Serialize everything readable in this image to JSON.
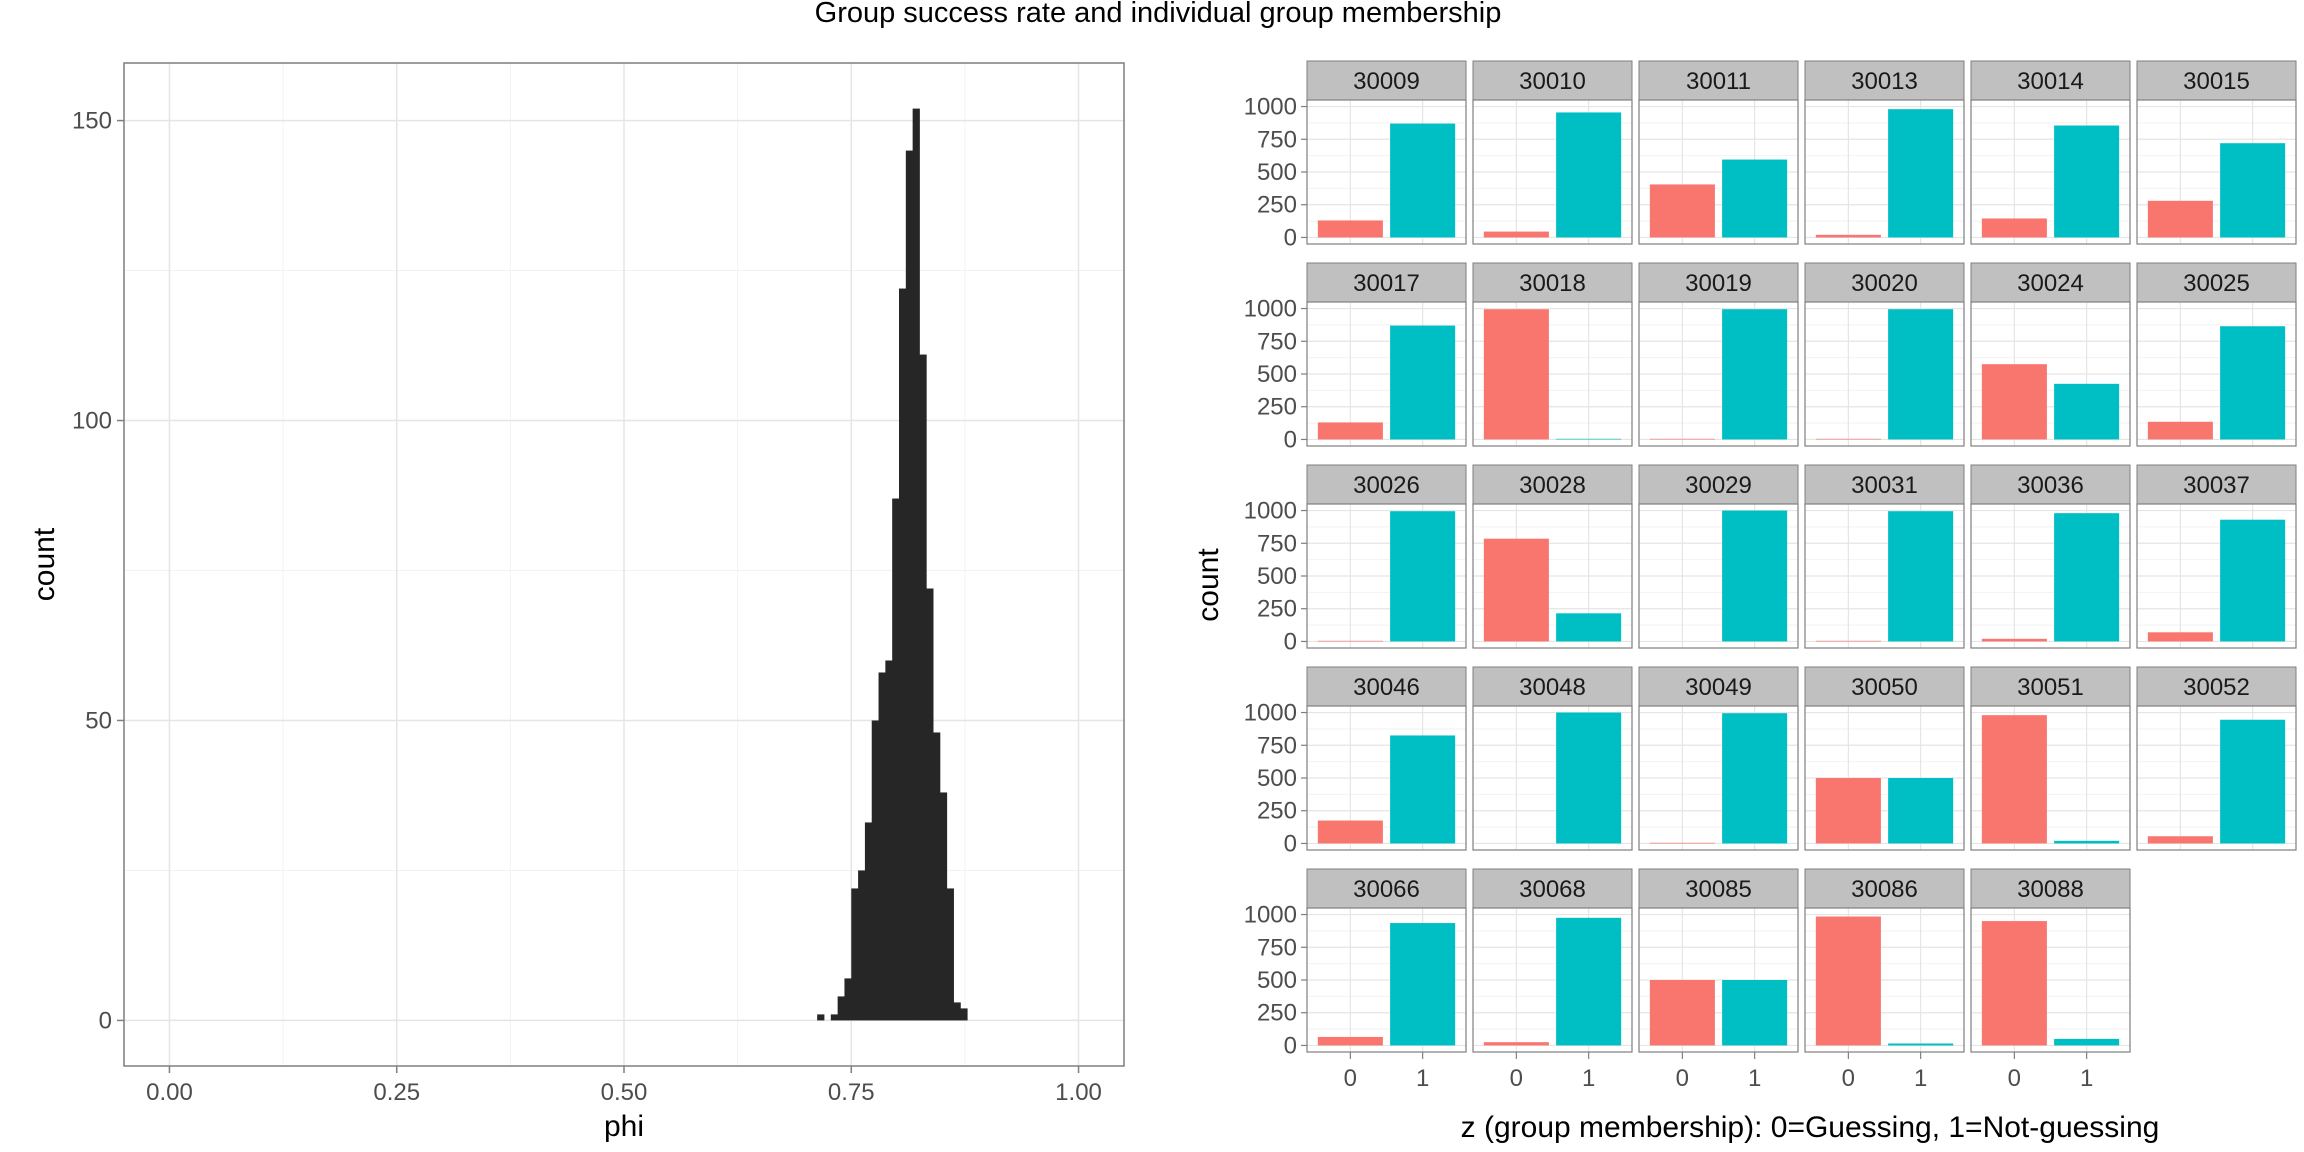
{
  "title": "Group success rate and individual group membership",
  "colors": {
    "group0": "#F8766D",
    "group1": "#00BFC4",
    "histogram": "#262626",
    "strip": "#C0C0C0"
  },
  "chart_data": [
    {
      "type": "bar",
      "subtype": "histogram",
      "xlabel": "phi",
      "ylabel": "count",
      "xlim": [
        -0.05,
        1.05
      ],
      "ylim": [
        -7.6,
        159.6
      ],
      "x_ticks": [
        "0.00",
        "0.25",
        "0.50",
        "0.75",
        "1.00"
      ],
      "y_ticks": [
        "0",
        "50",
        "100",
        "150"
      ],
      "grid": true,
      "bin_width": 0.0075,
      "bins": [
        [
          0.7125,
          1
        ],
        [
          0.7275,
          1
        ],
        [
          0.735,
          4
        ],
        [
          0.7425,
          7
        ],
        [
          0.75,
          22
        ],
        [
          0.7575,
          25
        ],
        [
          0.765,
          33
        ],
        [
          0.7725,
          50
        ],
        [
          0.78,
          58
        ],
        [
          0.7875,
          60
        ],
        [
          0.795,
          87
        ],
        [
          0.8025,
          122
        ],
        [
          0.81,
          145
        ],
        [
          0.8175,
          152
        ],
        [
          0.825,
          111
        ],
        [
          0.8325,
          72
        ],
        [
          0.84,
          48
        ],
        [
          0.8475,
          38
        ],
        [
          0.855,
          22
        ],
        [
          0.8625,
          3
        ],
        [
          0.87,
          2
        ]
      ]
    },
    {
      "type": "bar",
      "subtype": "faceted",
      "xlabel": "z (group membership): 0=Guessing, 1=Not-guessing",
      "ylabel": "count",
      "categories": [
        "0",
        "1"
      ],
      "y_ticks": [
        "0",
        "250",
        "500",
        "750",
        "1000"
      ],
      "ylim": [
        -50,
        1050
      ],
      "grid": true,
      "facets": [
        {
          "label": "30009",
          "values": [
            130,
            870
          ]
        },
        {
          "label": "30010",
          "values": [
            45,
            955
          ]
        },
        {
          "label": "30011",
          "values": [
            405,
            595
          ]
        },
        {
          "label": "30013",
          "values": [
            20,
            980
          ]
        },
        {
          "label": "30014",
          "values": [
            145,
            855
          ]
        },
        {
          "label": "30015",
          "values": [
            280,
            720
          ]
        },
        {
          "label": "30017",
          "values": [
            130,
            870
          ]
        },
        {
          "label": "30018",
          "values": [
            995,
            5
          ]
        },
        {
          "label": "30019",
          "values": [
            5,
            995
          ]
        },
        {
          "label": "30020",
          "values": [
            5,
            995
          ]
        },
        {
          "label": "30024",
          "values": [
            575,
            425
          ]
        },
        {
          "label": "30025",
          "values": [
            135,
            865
          ]
        },
        {
          "label": "30026",
          "values": [
            5,
            995
          ]
        },
        {
          "label": "30028",
          "values": [
            785,
            215
          ]
        },
        {
          "label": "30029",
          "values": [
            0,
            1000
          ]
        },
        {
          "label": "30031",
          "values": [
            5,
            995
          ]
        },
        {
          "label": "30036",
          "values": [
            20,
            980
          ]
        },
        {
          "label": "30037",
          "values": [
            70,
            930
          ]
        },
        {
          "label": "30046",
          "values": [
            175,
            825
          ]
        },
        {
          "label": "30048",
          "values": [
            0,
            1000
          ]
        },
        {
          "label": "30049",
          "values": [
            5,
            995
          ]
        },
        {
          "label": "30050",
          "values": [
            500,
            500
          ]
        },
        {
          "label": "30051",
          "values": [
            980,
            20
          ]
        },
        {
          "label": "30052",
          "values": [
            55,
            945
          ]
        },
        {
          "label": "30066",
          "values": [
            65,
            935
          ]
        },
        {
          "label": "30068",
          "values": [
            25,
            975
          ]
        },
        {
          "label": "30085",
          "values": [
            500,
            500
          ]
        },
        {
          "label": "30086",
          "values": [
            985,
            15
          ]
        },
        {
          "label": "30088",
          "values": [
            950,
            50
          ]
        }
      ]
    }
  ]
}
